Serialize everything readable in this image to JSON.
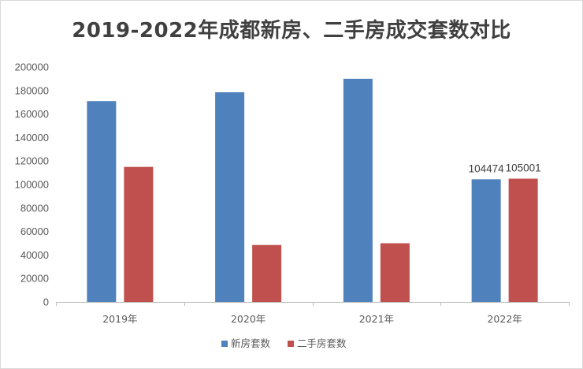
{
  "chart_data": {
    "type": "bar",
    "title": "2019-2022年成都新房、二手房成交套数对比",
    "categories": [
      "2019年",
      "2020年",
      "2021年",
      "2022年"
    ],
    "series": [
      {
        "name": "新房套数",
        "color": "#4f81bd",
        "values": [
          171000,
          178500,
          190000,
          104474
        ]
      },
      {
        "name": "二手房套数",
        "color": "#c0504d",
        "values": [
          115000,
          48500,
          50000,
          105001
        ]
      }
    ],
    "data_labels": {
      "2022年": {
        "新房套数": "104474",
        "二手房套数": "105001"
      }
    },
    "yticks": [
      "0",
      "20000",
      "40000",
      "60000",
      "80000",
      "100000",
      "120000",
      "140000",
      "160000",
      "180000",
      "200000"
    ],
    "ylim": [
      0,
      200000
    ],
    "xlabel": "",
    "ylabel": "",
    "grid": false,
    "legend_position": "bottom"
  }
}
